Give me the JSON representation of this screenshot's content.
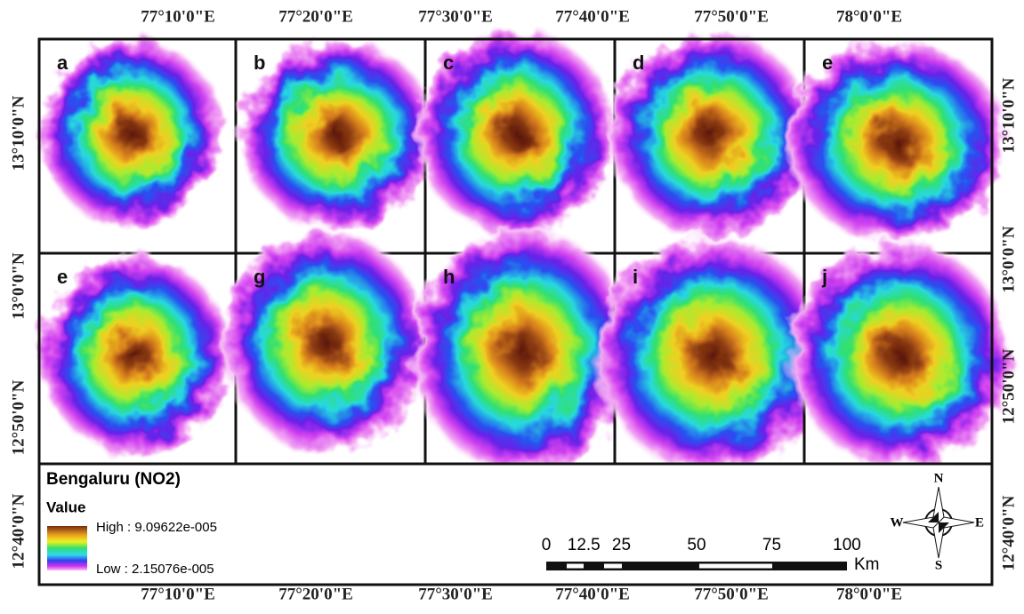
{
  "top_axis": [
    "77°10'0\"E",
    "77°20'0\"E",
    "77°30'0\"E",
    "77°40'0\"E",
    "77°50'0\"E",
    "78°0'0\"E"
  ],
  "bottom_axis": [
    "77°10'0\"E",
    "77°20'0\"E",
    "77°30'0\"E",
    "77°40'0\"E",
    "77°50'0\"E",
    "78°0'0\"E"
  ],
  "left_axis": [
    "13°10'0\"N",
    "13°0'0\"N",
    "12°50'0\"N",
    "12°40'0\"N"
  ],
  "right_axis": [
    "13°10'0\"N",
    "13°0'0\"N",
    "12°50'0\"N",
    "12°40'0\"N"
  ],
  "panels": [
    {
      "label": "a"
    },
    {
      "label": "b"
    },
    {
      "label": "c"
    },
    {
      "label": "d"
    },
    {
      "label": "e"
    },
    {
      "label": "e"
    },
    {
      "label": "g"
    },
    {
      "label": "h"
    },
    {
      "label": "i"
    },
    {
      "label": "j"
    }
  ],
  "legend": {
    "title": "Bengaluru (NO2)",
    "subtitle": "Value",
    "high": "High : 9.09622e-005",
    "low": "Low : 2.15076e-005"
  },
  "scale_bar": {
    "ticks": [
      0,
      12.5,
      25,
      50,
      75,
      100
    ],
    "unit": "Km"
  },
  "north_arrow": {
    "n": "N",
    "s": "S",
    "e": "E",
    "w": "W"
  }
}
